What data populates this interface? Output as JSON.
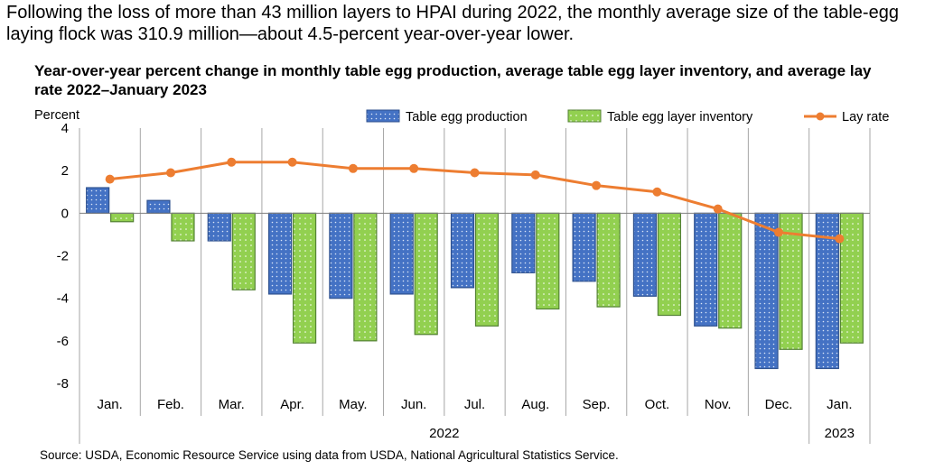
{
  "intro_text": "Following the loss of more than 43 million layers to HPAI during 2022, the monthly average size of the table-egg laying flock was 310.9 million—about 4.5-percent year-over-year lower.",
  "source_text": "Source: USDA, Economic Resource Service using data from USDA, National Agricultural Statistics Service.",
  "colors": {
    "production": "#4472c4",
    "production_edge": "#2f528f",
    "inventory": "#92d050",
    "inventory_edge": "#548235",
    "lay_rate": "#ed7d31"
  },
  "chart_data": {
    "type": "bar",
    "title": "Year-over-year percent change in monthly table egg production, average table egg layer inventory, and average lay rate 2022–January 2023",
    "ylabel": "Percent",
    "xlabel": "",
    "ylim": [
      -8,
      4
    ],
    "yticks": [
      4,
      2,
      0,
      -2,
      -4,
      -6,
      -8
    ],
    "categories": [
      "Jan.",
      "Feb.",
      "Mar.",
      "Apr.",
      "May.",
      "Jun.",
      "Jul.",
      "Aug.",
      "Sep.",
      "Oct.",
      "Nov.",
      "Dec.",
      "Jan."
    ],
    "year_groups": [
      {
        "label": "2022",
        "count": 12
      },
      {
        "label": "2023",
        "count": 1
      }
    ],
    "legend_position": "top-right",
    "series": [
      {
        "name": "Table egg production",
        "type": "bar",
        "values": [
          1.2,
          0.6,
          -1.3,
          -3.8,
          -4.0,
          -3.8,
          -3.5,
          -2.8,
          -3.2,
          -3.9,
          -5.3,
          -7.3,
          -7.3
        ]
      },
      {
        "name": "Table egg layer inventory",
        "type": "bar",
        "values": [
          -0.4,
          -1.3,
          -3.6,
          -6.1,
          -6.0,
          -5.7,
          -5.3,
          -4.5,
          -4.4,
          -4.8,
          -5.4,
          -6.4,
          -6.1
        ]
      },
      {
        "name": "Lay rate",
        "type": "line",
        "values": [
          1.6,
          1.9,
          2.4,
          2.4,
          2.1,
          2.1,
          1.9,
          1.8,
          1.3,
          1.0,
          0.2,
          -0.9,
          -1.2
        ]
      }
    ]
  }
}
